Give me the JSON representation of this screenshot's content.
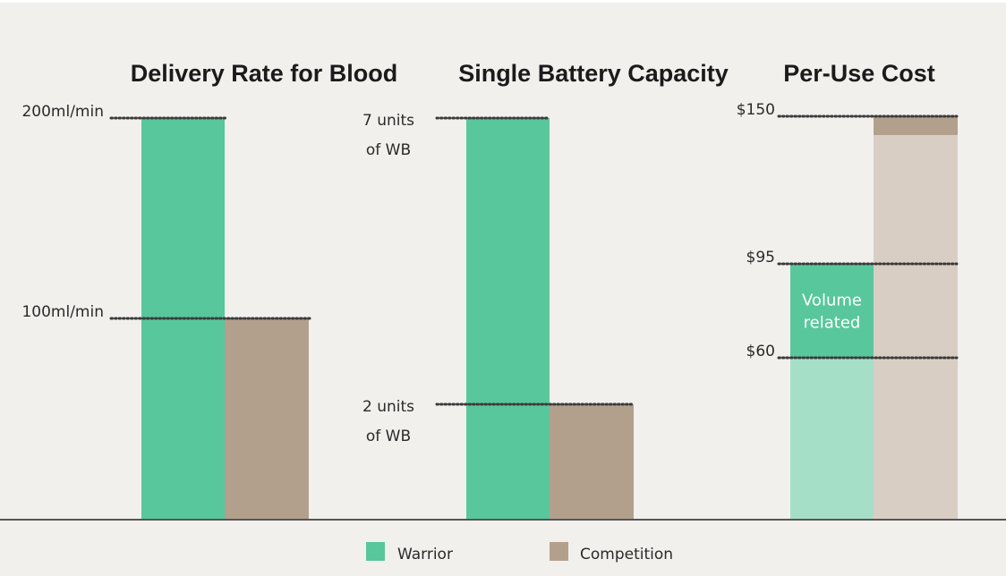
{
  "colors": {
    "warrior": "#58c79c",
    "warrior_light": "#a6dfc7",
    "competition": "#b2a08d",
    "competition_light": "#d9cec4",
    "background": "#f2f0ed",
    "axis": "#555555",
    "leader": "#3a3a3a"
  },
  "legend": [
    {
      "name": "Warrior",
      "color": "#58c79c"
    },
    {
      "name": "Competition",
      "color": "#b2a08d"
    }
  ],
  "chart_data": [
    {
      "type": "bar",
      "title": "Delivery Rate for Blood",
      "series": [
        {
          "name": "Warrior",
          "value": 200
        },
        {
          "name": "Competition",
          "value": 100
        }
      ],
      "ylim": [
        0,
        200
      ],
      "tick_labels": [
        {
          "value": 200,
          "lines": [
            "200ml/min"
          ]
        },
        {
          "value": 100,
          "lines": [
            "100ml/min"
          ]
        }
      ]
    },
    {
      "type": "bar",
      "title": "Single Battery Capacity",
      "series": [
        {
          "name": "Warrior",
          "value": 7
        },
        {
          "name": "Competition",
          "value": 2
        }
      ],
      "ylim": [
        0,
        7
      ],
      "tick_labels": [
        {
          "value": 7,
          "lines": [
            "7 units",
            "of WB"
          ]
        },
        {
          "value": 2,
          "lines": [
            "2 units",
            "of WB"
          ]
        }
      ]
    },
    {
      "type": "bar",
      "title": "Per-Use Cost",
      "series": [
        {
          "name": "Warrior",
          "value": 95,
          "segments": [
            {
              "from": 0,
              "to": 60,
              "shade": "light"
            },
            {
              "from": 60,
              "to": 95,
              "shade": "dark",
              "label": [
                "Volume",
                "related"
              ]
            }
          ]
        },
        {
          "name": "Competition",
          "value": 150,
          "segments": [
            {
              "from": 0,
              "to": 143,
              "shade": "light"
            },
            {
              "from": 143,
              "to": 150,
              "shade": "dark"
            }
          ]
        }
      ],
      "ylim": [
        0,
        150
      ],
      "tick_labels": [
        {
          "value": 150,
          "lines": [
            "$150"
          ]
        },
        {
          "value": 95,
          "lines": [
            "$95"
          ]
        },
        {
          "value": 60,
          "lines": [
            "$60"
          ]
        }
      ]
    }
  ]
}
